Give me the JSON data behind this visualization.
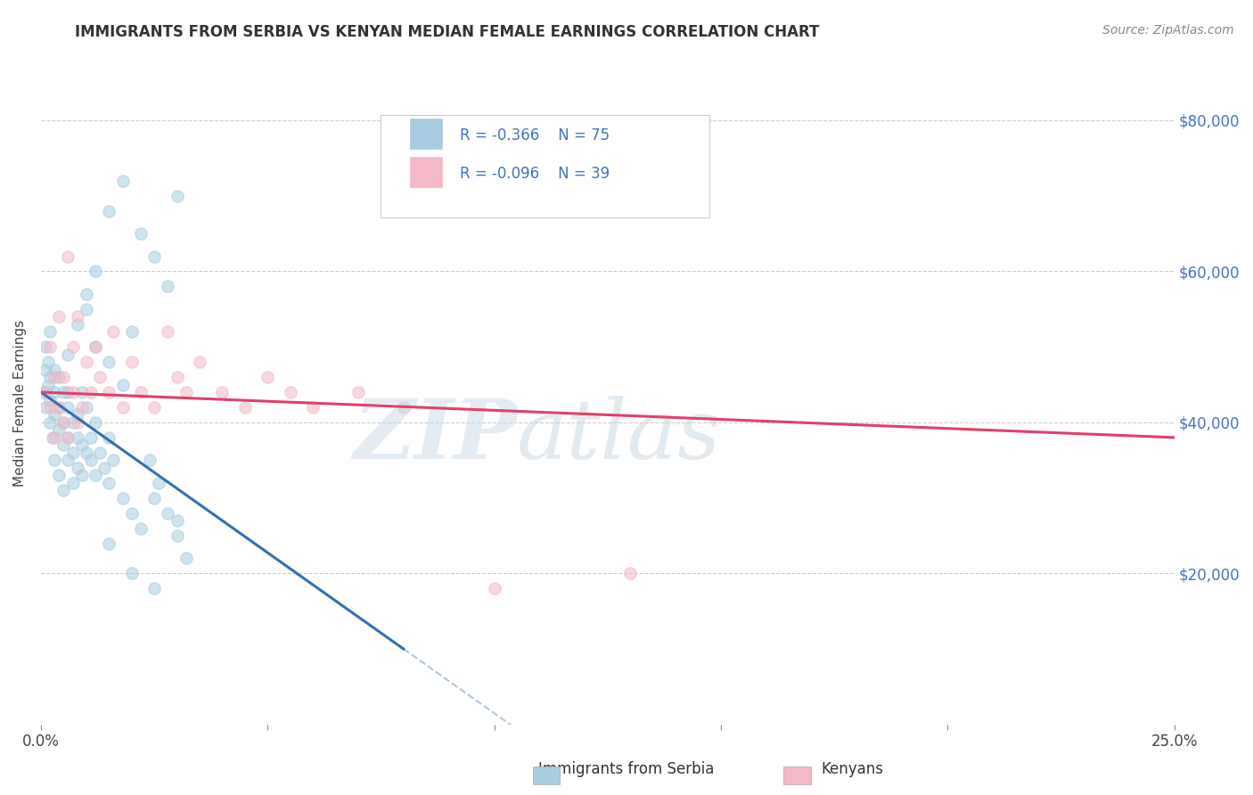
{
  "title": "IMMIGRANTS FROM SERBIA VS KENYAN MEDIAN FEMALE EARNINGS CORRELATION CHART",
  "source": "Source: ZipAtlas.com",
  "ylabel": "Median Female Earnings",
  "legend_label1": "Immigrants from Serbia",
  "legend_label2": "Kenyans",
  "legend_r1": "-0.366",
  "legend_n1": "75",
  "legend_r2": "-0.096",
  "legend_n2": "39",
  "color_blue": "#a8cce0",
  "color_pink": "#f4b8c8",
  "color_blue_line": "#3070b0",
  "color_pink_line": "#e0406a",
  "watermark_zip": "ZIP",
  "watermark_atlas": "atlas",
  "background_color": "#ffffff",
  "grid_color": "#cccccc",
  "xlim": [
    0.0,
    0.25
  ],
  "ylim": [
    0,
    85000
  ],
  "serbia_x": [
    0.0005,
    0.001,
    0.001,
    0.001,
    0.0015,
    0.0015,
    0.002,
    0.002,
    0.002,
    0.002,
    0.0025,
    0.003,
    0.003,
    0.003,
    0.003,
    0.004,
    0.004,
    0.004,
    0.004,
    0.005,
    0.005,
    0.005,
    0.005,
    0.006,
    0.006,
    0.006,
    0.006,
    0.007,
    0.007,
    0.007,
    0.008,
    0.008,
    0.008,
    0.009,
    0.009,
    0.009,
    0.01,
    0.01,
    0.011,
    0.011,
    0.012,
    0.012,
    0.013,
    0.014,
    0.015,
    0.015,
    0.016,
    0.018,
    0.02,
    0.022,
    0.024,
    0.026,
    0.028,
    0.03,
    0.032,
    0.015,
    0.018,
    0.022,
    0.025,
    0.028,
    0.03,
    0.01,
    0.012,
    0.015,
    0.018,
    0.02,
    0.025,
    0.03,
    0.015,
    0.02,
    0.025,
    0.012,
    0.01,
    0.008,
    0.006
  ],
  "serbia_y": [
    44000,
    47000,
    42000,
    50000,
    45000,
    48000,
    40000,
    43000,
    52000,
    46000,
    38000,
    44000,
    41000,
    47000,
    35000,
    42000,
    39000,
    46000,
    33000,
    40000,
    44000,
    37000,
    31000,
    42000,
    38000,
    35000,
    44000,
    40000,
    36000,
    32000,
    38000,
    34000,
    41000,
    37000,
    33000,
    44000,
    36000,
    42000,
    38000,
    35000,
    33000,
    40000,
    36000,
    34000,
    32000,
    38000,
    35000,
    30000,
    28000,
    26000,
    35000,
    32000,
    28000,
    25000,
    22000,
    68000,
    72000,
    65000,
    62000,
    58000,
    70000,
    55000,
    50000,
    48000,
    45000,
    52000,
    30000,
    27000,
    24000,
    20000,
    18000,
    60000,
    57000,
    53000,
    49000
  ],
  "kenya_x": [
    0.001,
    0.002,
    0.002,
    0.003,
    0.003,
    0.004,
    0.004,
    0.005,
    0.005,
    0.006,
    0.006,
    0.007,
    0.007,
    0.008,
    0.008,
    0.009,
    0.01,
    0.011,
    0.012,
    0.013,
    0.015,
    0.016,
    0.018,
    0.02,
    0.022,
    0.025,
    0.028,
    0.03,
    0.032,
    0.035,
    0.04,
    0.045,
    0.05,
    0.055,
    0.06,
    0.07,
    0.08,
    0.1,
    0.13
  ],
  "kenya_y": [
    44000,
    42000,
    50000,
    46000,
    38000,
    54000,
    42000,
    40000,
    46000,
    62000,
    38000,
    50000,
    44000,
    40000,
    54000,
    42000,
    48000,
    44000,
    50000,
    46000,
    44000,
    52000,
    42000,
    48000,
    44000,
    42000,
    52000,
    46000,
    44000,
    48000,
    44000,
    42000,
    46000,
    44000,
    42000,
    44000,
    42000,
    18000,
    20000
  ]
}
